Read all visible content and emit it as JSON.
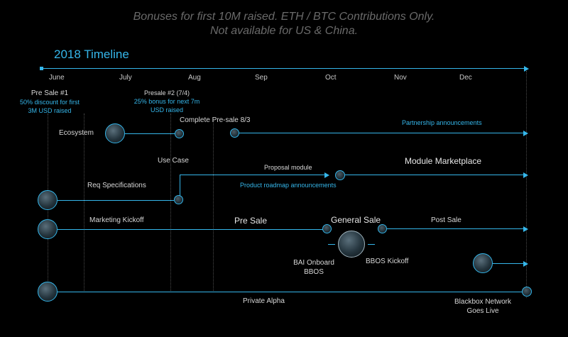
{
  "banner": {
    "line1": "Bonuses for first 10M raised. ETH / BTC Contributions Only.",
    "line2": "Not available for US & China."
  },
  "timeline_title": "2018 Timeline",
  "months": [
    "June",
    "July",
    "Aug",
    "Sep",
    "Oct",
    "Nov",
    "Dec"
  ],
  "presale1": {
    "title": "Pre Sale #1",
    "line1": "50% discount for first",
    "line2": "3M USD raised"
  },
  "presale2": {
    "title": "Presale #2 (7/4)",
    "line1": "25% bonus for next 7m",
    "line2": "USD raised"
  },
  "labels": {
    "complete_presale": "Complete Pre-sale 8/3",
    "ecosystem": "Ecosystem",
    "partnership": "Partnership announcements",
    "use_case": "Use Case",
    "proposal_module": "Proposal module",
    "module_marketplace": "Module Marketplace",
    "req_specs": "Req Specifications",
    "product_roadmap": "Product roadmap announcements",
    "marketing_kickoff": "Marketing Kickoff",
    "pre_sale": "Pre Sale",
    "general_sale": "General Sale",
    "post_sale": "Post Sale",
    "bai_onboard_1": "BAI Onboard",
    "bai_onboard_2": "BBOS",
    "bbos_kickoff": "BBOS Kickoff",
    "private_alpha": "Private Alpha",
    "blackbox_1": "Blackbox Network",
    "blackbox_2": "Goes Live"
  },
  "colors": {
    "accent": "#35b6ea",
    "banner": "#6a6a6a",
    "background": "#000000"
  }
}
